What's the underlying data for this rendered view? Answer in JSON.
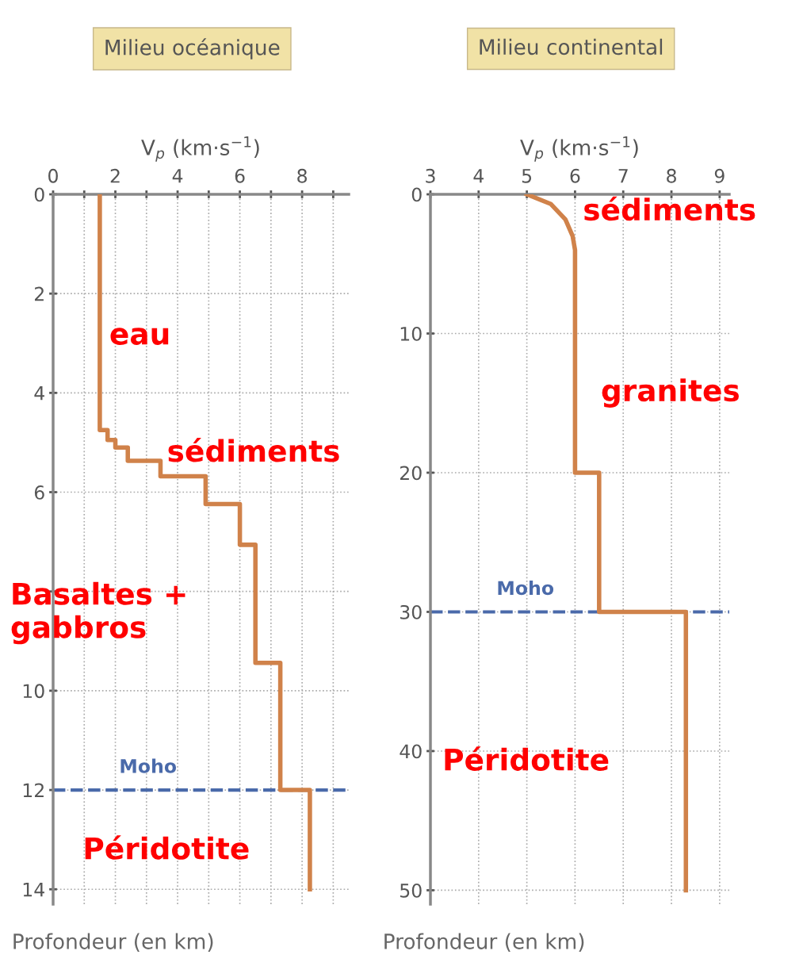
{
  "chart_data": [
    {
      "type": "line",
      "title": "Milieu océanique",
      "xlabel": "V$_{p}$ (km·s$^{−1}$)",
      "ylabel": "Profondeur (en km)",
      "xlim": [
        0,
        9.5
      ],
      "ylim": [
        14.3,
        0
      ],
      "xticks": [
        0,
        {
          "value": 1,
          "label": null
        },
        2,
        {
          "value": 3,
          "label": null
        },
        4,
        {
          "value": 5,
          "label": null
        },
        6,
        {
          "value": 7,
          "label": null
        },
        8,
        {
          "value": 9,
          "label": null
        }
      ],
      "yticks": [
        0,
        2,
        4,
        6,
        {
          "value": 8,
          "label": null
        },
        10,
        12,
        14
      ],
      "grid": true,
      "marker": "none",
      "line_style": "solid",
      "series": [
        {
          "color": "#d0824a",
          "x": [
            1.5,
            1.5,
            1.75,
            1.75,
            2.0,
            2.0,
            2.4,
            2.4,
            3.45,
            3.45,
            4.9,
            4.9,
            6.0,
            6.0,
            6.5,
            6.5,
            7.3,
            7.3,
            8.25,
            8.25
          ],
          "values": [
            0,
            4.75,
            4.75,
            4.95,
            4.95,
            5.1,
            5.1,
            5.37,
            5.37,
            5.68,
            5.68,
            6.24,
            6.24,
            7.06,
            7.06,
            9.44,
            9.44,
            12.0,
            12.0,
            14
          ]
        }
      ],
      "ref_lines": [
        {
          "axis": "y",
          "value": 12,
          "label": "Moho",
          "color": "#4a6aaa",
          "line_style": "dashed"
        }
      ],
      "annotations": [
        "eau",
        "sédiments",
        "Basaltes +\ngabbros",
        "Péridotite"
      ]
    },
    {
      "type": "line",
      "title": "Milieu continental",
      "xlabel": "V$_{p}$ (km·s$^{−1}$)",
      "ylabel": "Profondeur (en km)",
      "xlim": [
        3,
        9.2
      ],
      "ylim": [
        51,
        0
      ],
      "xticks": [
        3,
        4,
        5,
        6,
        7,
        8,
        9
      ],
      "yticks": [
        0,
        10,
        20,
        30,
        40,
        50
      ],
      "grid": true,
      "marker": "none",
      "line_style": "solid",
      "series": [
        {
          "color": "#d0824a",
          "x": [
            5.0,
            5.5,
            5.8,
            5.95,
            6.0,
            6.0,
            6.5,
            6.5,
            8.3,
            8.3
          ],
          "values": [
            0,
            0.7,
            1.8,
            3,
            4,
            20,
            20,
            30,
            30,
            50
          ]
        }
      ],
      "ref_lines": [
        {
          "axis": "y",
          "value": 30,
          "label": "Moho",
          "color": "#4a6aaa",
          "line_style": "dashed"
        }
      ],
      "annotations": [
        "sédiments",
        "granites",
        "Péridotite"
      ]
    }
  ]
}
